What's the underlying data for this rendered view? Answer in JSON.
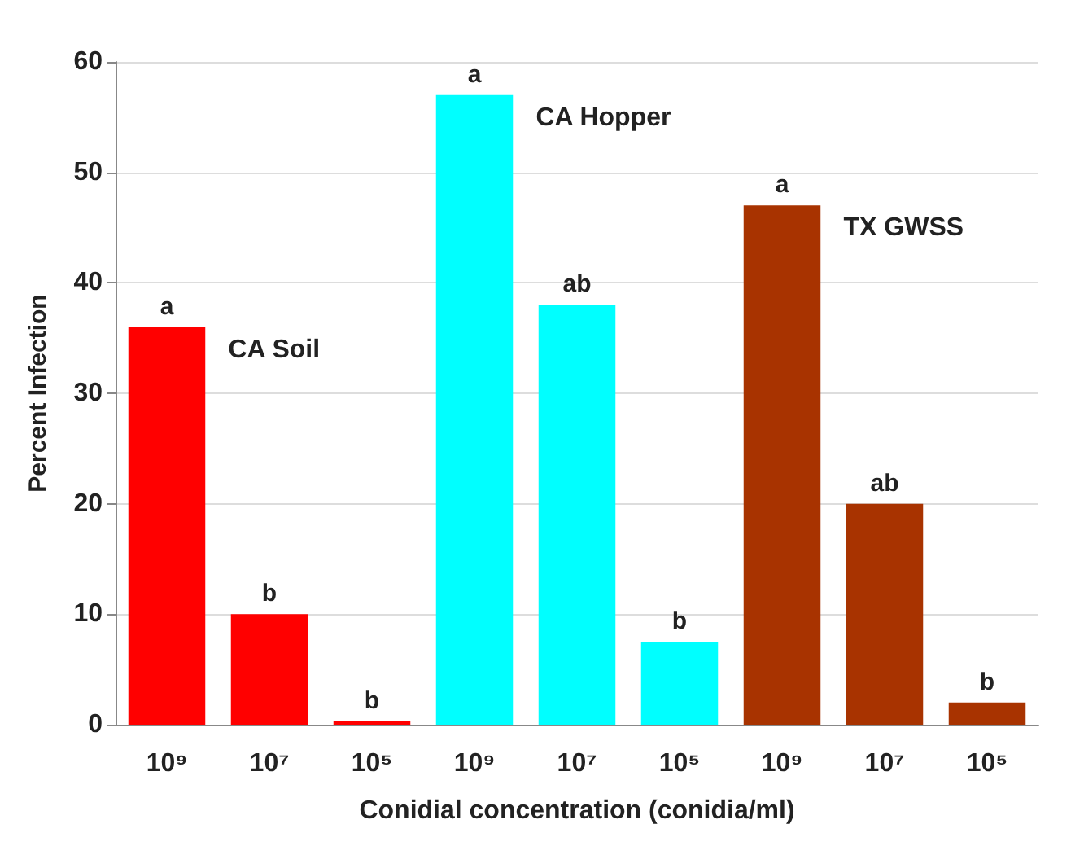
{
  "chart_data": {
    "type": "bar",
    "stacked": true,
    "xlabel": "Conidial concentration (conidia/ml)",
    "ylabel": "Percent Infection",
    "categories": [
      "10⁹",
      "10⁷",
      "10⁵",
      "10⁹",
      "10⁷",
      "10⁵",
      "10⁹",
      "10⁷",
      "10⁵"
    ],
    "series": [
      {
        "name": "CA Soil",
        "color": "#ff0000",
        "values": [
          36,
          10,
          0.3,
          null,
          null,
          null,
          null,
          null,
          null
        ],
        "value_labels": [
          "a",
          "b",
          "b",
          null,
          null,
          null,
          null,
          null,
          null
        ]
      },
      {
        "name": "CA Hopper",
        "color": "#00ffff",
        "values": [
          null,
          null,
          null,
          57,
          38,
          7.5,
          null,
          null,
          null
        ],
        "value_labels": [
          null,
          null,
          null,
          "a",
          "ab",
          "b",
          null,
          null,
          null
        ]
      },
      {
        "name": "TX GWSS",
        "color": "#a83300",
        "values": [
          null,
          null,
          null,
          null,
          null,
          null,
          47,
          20,
          2
        ],
        "value_labels": [
          null,
          null,
          null,
          null,
          null,
          null,
          "a",
          "ab",
          "b"
        ]
      }
    ],
    "ylim": [
      0,
      60
    ],
    "yticks": [
      0,
      10,
      20,
      30,
      40,
      50,
      60
    ],
    "grid": "y",
    "legend": false
  }
}
